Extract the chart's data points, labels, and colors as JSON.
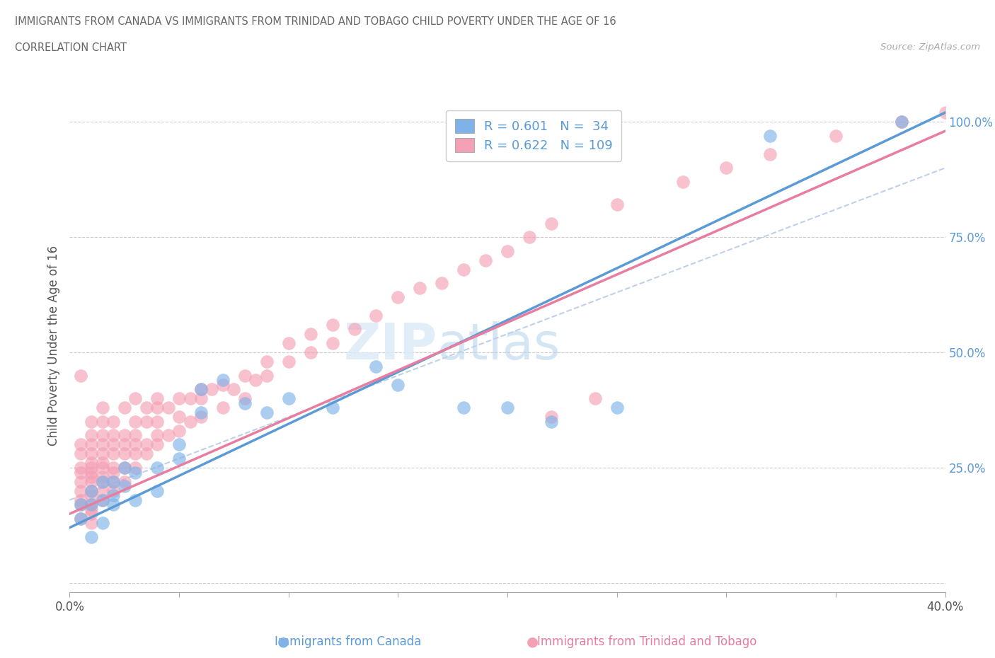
{
  "title_line1": "IMMIGRANTS FROM CANADA VS IMMIGRANTS FROM TRINIDAD AND TOBAGO CHILD POVERTY UNDER THE AGE OF 16",
  "title_line2": "CORRELATION CHART",
  "source_text": "Source: ZipAtlas.com",
  "ylabel": "Child Poverty Under the Age of 16",
  "xlim": [
    0.0,
    0.4
  ],
  "ylim": [
    -0.02,
    1.05
  ],
  "ytick_vals": [
    0.0,
    0.25,
    0.5,
    0.75,
    1.0
  ],
  "ytick_labels": [
    "",
    "25.0%",
    "50.0%",
    "75.0%",
    "100.0%"
  ],
  "xtick_vals": [
    0.0,
    0.05,
    0.1,
    0.15,
    0.2,
    0.25,
    0.3,
    0.35,
    0.4
  ],
  "xtick_labels": [
    "0.0%",
    "",
    "",
    "",
    "",
    "",
    "",
    "",
    "40.0%"
  ],
  "color_canada": "#7fb3e8",
  "color_tt": "#f4a0b5",
  "color_canada_dark": "#5b9bd5",
  "color_tt_dark": "#e87da0",
  "legend_text1": "R = 0.601   N =  34",
  "legend_text2": "R = 0.622   N = 109",
  "watermark_zip": "ZIP",
  "watermark_atlas": "atlas",
  "bottom_label_canada": "Immigrants from Canada",
  "bottom_label_tt": "Immigrants from Trinidad and Tobago",
  "canada_x": [
    0.005,
    0.005,
    0.01,
    0.01,
    0.01,
    0.015,
    0.015,
    0.015,
    0.02,
    0.02,
    0.02,
    0.025,
    0.025,
    0.03,
    0.03,
    0.04,
    0.04,
    0.05,
    0.05,
    0.06,
    0.06,
    0.07,
    0.08,
    0.09,
    0.1,
    0.12,
    0.14,
    0.15,
    0.18,
    0.2,
    0.22,
    0.25,
    0.32,
    0.38
  ],
  "canada_y": [
    0.14,
    0.17,
    0.1,
    0.17,
    0.2,
    0.13,
    0.18,
    0.22,
    0.17,
    0.19,
    0.22,
    0.21,
    0.25,
    0.18,
    0.24,
    0.2,
    0.25,
    0.3,
    0.27,
    0.37,
    0.42,
    0.44,
    0.39,
    0.37,
    0.4,
    0.38,
    0.47,
    0.43,
    0.38,
    0.38,
    0.35,
    0.38,
    0.97,
    1.0
  ],
  "tt_x": [
    0.005,
    0.005,
    0.005,
    0.005,
    0.005,
    0.005,
    0.005,
    0.005,
    0.005,
    0.005,
    0.01,
    0.01,
    0.01,
    0.01,
    0.01,
    0.01,
    0.01,
    0.01,
    0.01,
    0.01,
    0.01,
    0.01,
    0.01,
    0.01,
    0.01,
    0.015,
    0.015,
    0.015,
    0.015,
    0.015,
    0.015,
    0.015,
    0.015,
    0.015,
    0.015,
    0.015,
    0.02,
    0.02,
    0.02,
    0.02,
    0.02,
    0.02,
    0.02,
    0.02,
    0.025,
    0.025,
    0.025,
    0.025,
    0.025,
    0.025,
    0.03,
    0.03,
    0.03,
    0.03,
    0.03,
    0.03,
    0.035,
    0.035,
    0.035,
    0.035,
    0.04,
    0.04,
    0.04,
    0.04,
    0.04,
    0.045,
    0.045,
    0.05,
    0.05,
    0.05,
    0.055,
    0.055,
    0.06,
    0.06,
    0.06,
    0.065,
    0.07,
    0.07,
    0.075,
    0.08,
    0.08,
    0.085,
    0.09,
    0.09,
    0.1,
    0.1,
    0.11,
    0.11,
    0.12,
    0.12,
    0.13,
    0.14,
    0.15,
    0.16,
    0.17,
    0.18,
    0.19,
    0.2,
    0.21,
    0.22,
    0.25,
    0.28,
    0.3,
    0.32,
    0.35,
    0.38,
    0.4,
    0.22,
    0.24
  ],
  "tt_y": [
    0.14,
    0.17,
    0.18,
    0.2,
    0.22,
    0.24,
    0.25,
    0.28,
    0.3,
    0.45,
    0.13,
    0.15,
    0.16,
    0.17,
    0.19,
    0.2,
    0.22,
    0.23,
    0.24,
    0.25,
    0.26,
    0.28,
    0.3,
    0.32,
    0.35,
    0.18,
    0.2,
    0.22,
    0.23,
    0.25,
    0.26,
    0.28,
    0.3,
    0.32,
    0.35,
    0.38,
    0.2,
    0.22,
    0.24,
    0.25,
    0.28,
    0.3,
    0.32,
    0.35,
    0.22,
    0.25,
    0.28,
    0.3,
    0.32,
    0.38,
    0.25,
    0.28,
    0.3,
    0.32,
    0.35,
    0.4,
    0.28,
    0.3,
    0.35,
    0.38,
    0.3,
    0.32,
    0.35,
    0.38,
    0.4,
    0.32,
    0.38,
    0.33,
    0.36,
    0.4,
    0.35,
    0.4,
    0.36,
    0.4,
    0.42,
    0.42,
    0.38,
    0.43,
    0.42,
    0.4,
    0.45,
    0.44,
    0.45,
    0.48,
    0.48,
    0.52,
    0.5,
    0.54,
    0.52,
    0.56,
    0.55,
    0.58,
    0.62,
    0.64,
    0.65,
    0.68,
    0.7,
    0.72,
    0.75,
    0.78,
    0.82,
    0.87,
    0.9,
    0.93,
    0.97,
    1.0,
    1.02,
    0.36,
    0.4
  ],
  "canada_line_x": [
    0.0,
    0.4
  ],
  "canada_line_y": [
    0.12,
    1.02
  ],
  "tt_line_x": [
    0.0,
    0.4
  ],
  "tt_line_y": [
    0.15,
    0.98
  ],
  "ref_line_x": [
    0.0,
    0.4
  ],
  "ref_line_y": [
    0.18,
    0.9
  ]
}
